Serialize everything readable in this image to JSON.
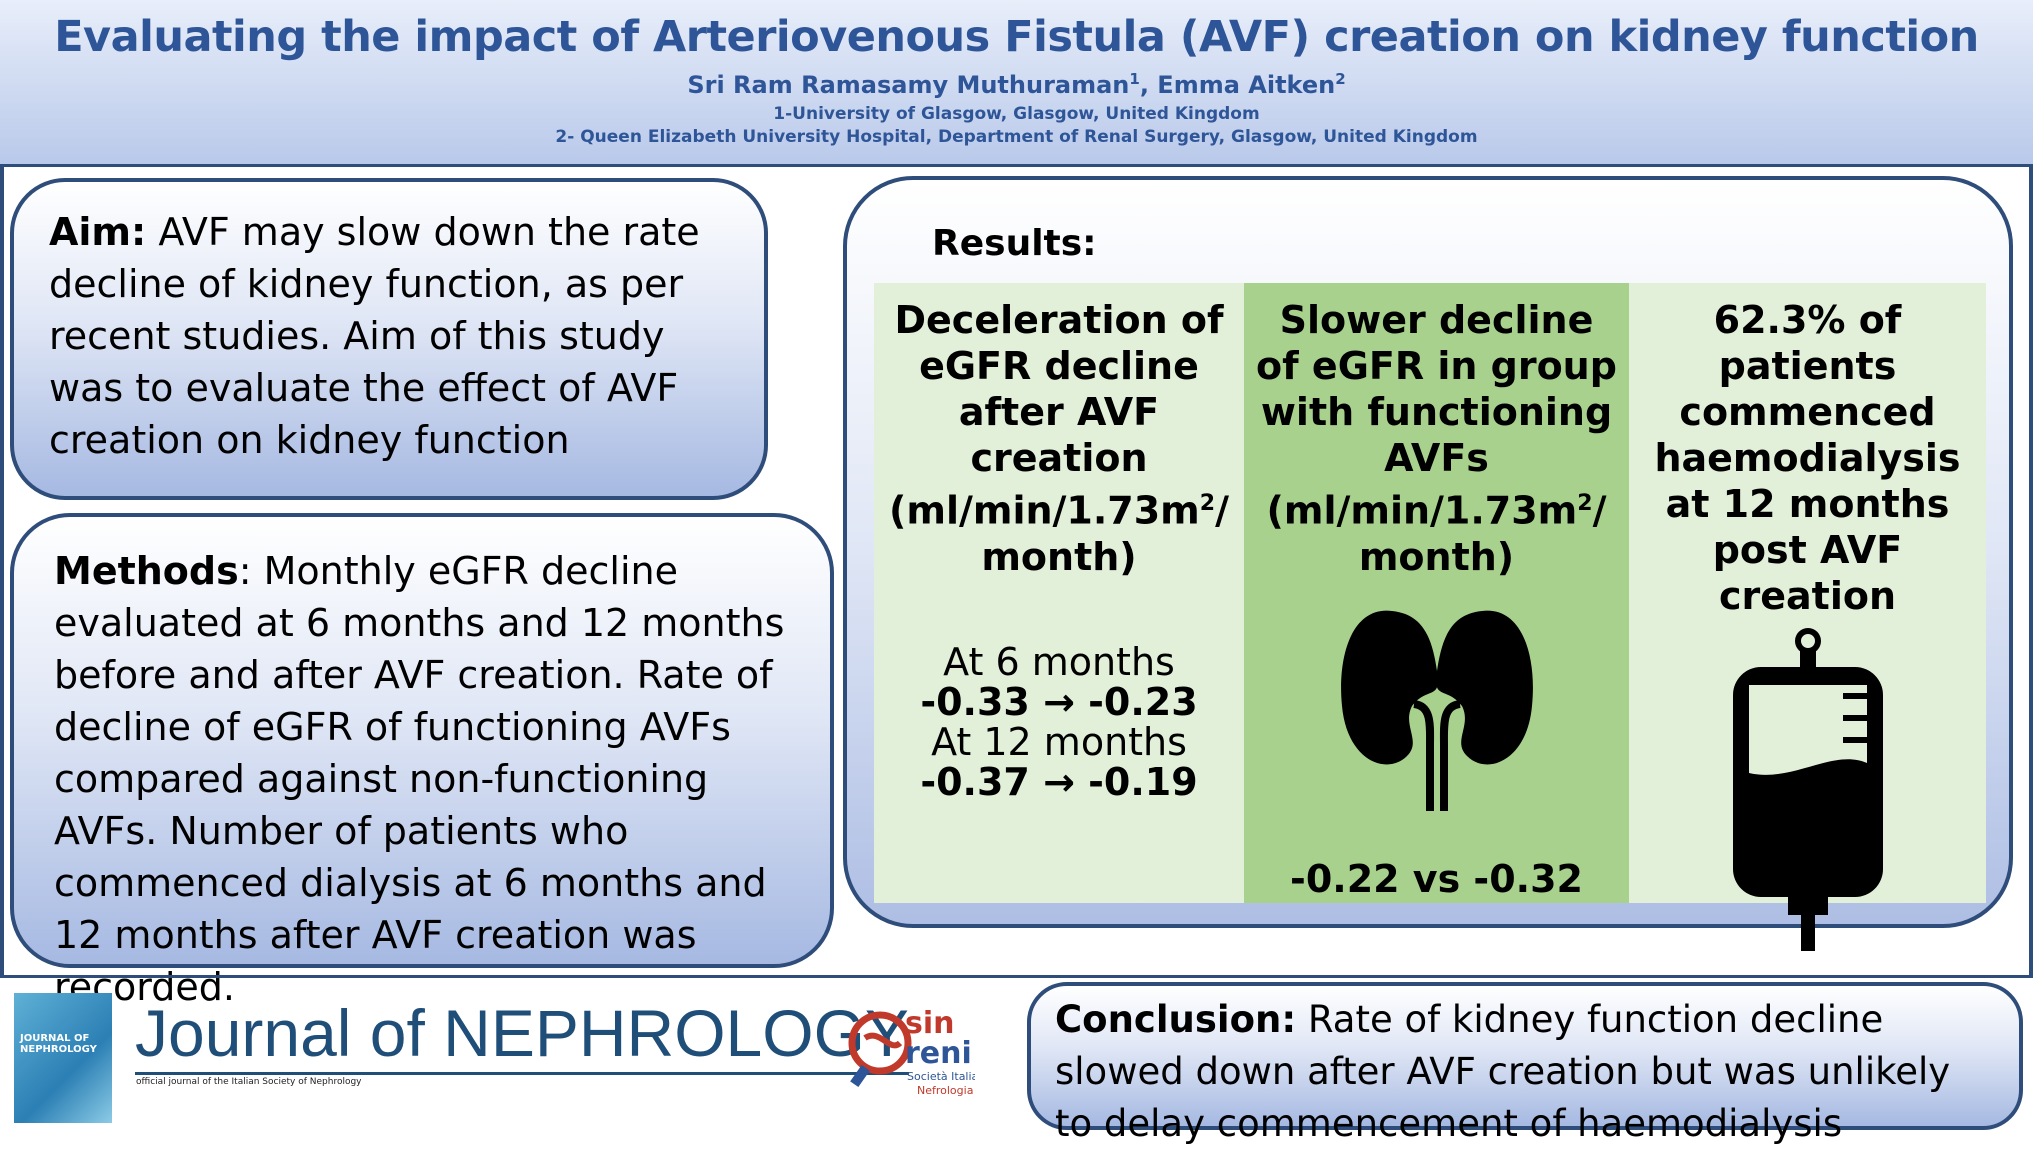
{
  "header": {
    "title": "Evaluating the impact of Arteriovenous Fistula (AVF) creation on kidney function",
    "authors_a": "Sri Ram Ramasamy Muthuraman",
    "authors_a_sup": "1",
    "authors_sep": ", Emma Aitken",
    "authors_b_sup": "2",
    "affil1": "1-University of Glasgow, Glasgow, United Kingdom",
    "affil2": "2- Queen Elizabeth University Hospital, Department of Renal Surgery, Glasgow, United Kingdom"
  },
  "aim": {
    "label": "Aim:",
    "text": " AVF may slow down the rate decline of kidney function, as per recent studies. Aim of this study was to evaluate the effect of AVF creation on kidney  function"
  },
  "methods": {
    "label": "Methods",
    "text": ": Monthly eGFR decline evaluated at 6 months and 12 months before and after AVF creation. Rate of decline of eGFR of functioning AVFs compared against non-functioning AVFs. Number of patients who commenced dialysis at 6 months and 12 months after AVF creation was recorded."
  },
  "results": {
    "label": "Results:",
    "col1": {
      "heading_a": "Deceleration of eGFR decline after AVF creation (ml/min/1.73m",
      "heading_sup": "2",
      "heading_b": "/ month)",
      "t6_label": "At 6 months",
      "t6_value": "-0.33 → -0.23",
      "t12_label": "At 12 months",
      "t12_value": "-0.37 → -0.19"
    },
    "col2": {
      "heading_a": "Slower decline of eGFR in group with functioning AVFs (ml/min/1.73m",
      "heading_sup": "2",
      "heading_b": "/ month)",
      "value": "-0.22 vs -0.32",
      "icon": "kidney-icon"
    },
    "col3": {
      "heading": "62.3% of patients commenced haemodialysis at 12 months post AVF creation",
      "icon": "iv-bag-icon"
    }
  },
  "conclusion": {
    "label": "Conclusion:",
    "text": " Rate of kidney function decline slowed down after AVF creation but was unlikely to delay commencement of haemodialysis"
  },
  "footer": {
    "journal_title": "Journal of NEPHROLOGY",
    "journal_subtitle": "official journal of the Italian Society of Nephrology",
    "cover_title": "JOURNAL OF NEPHROLOGY",
    "sin_logo_text": "sin reni Società Italiana Nefrologia"
  },
  "colors": {
    "title_blue": "#2e5597",
    "border_navy": "#2f4d7a",
    "light_green": "#e2f0d9",
    "mid_green": "#a9d18e"
  }
}
